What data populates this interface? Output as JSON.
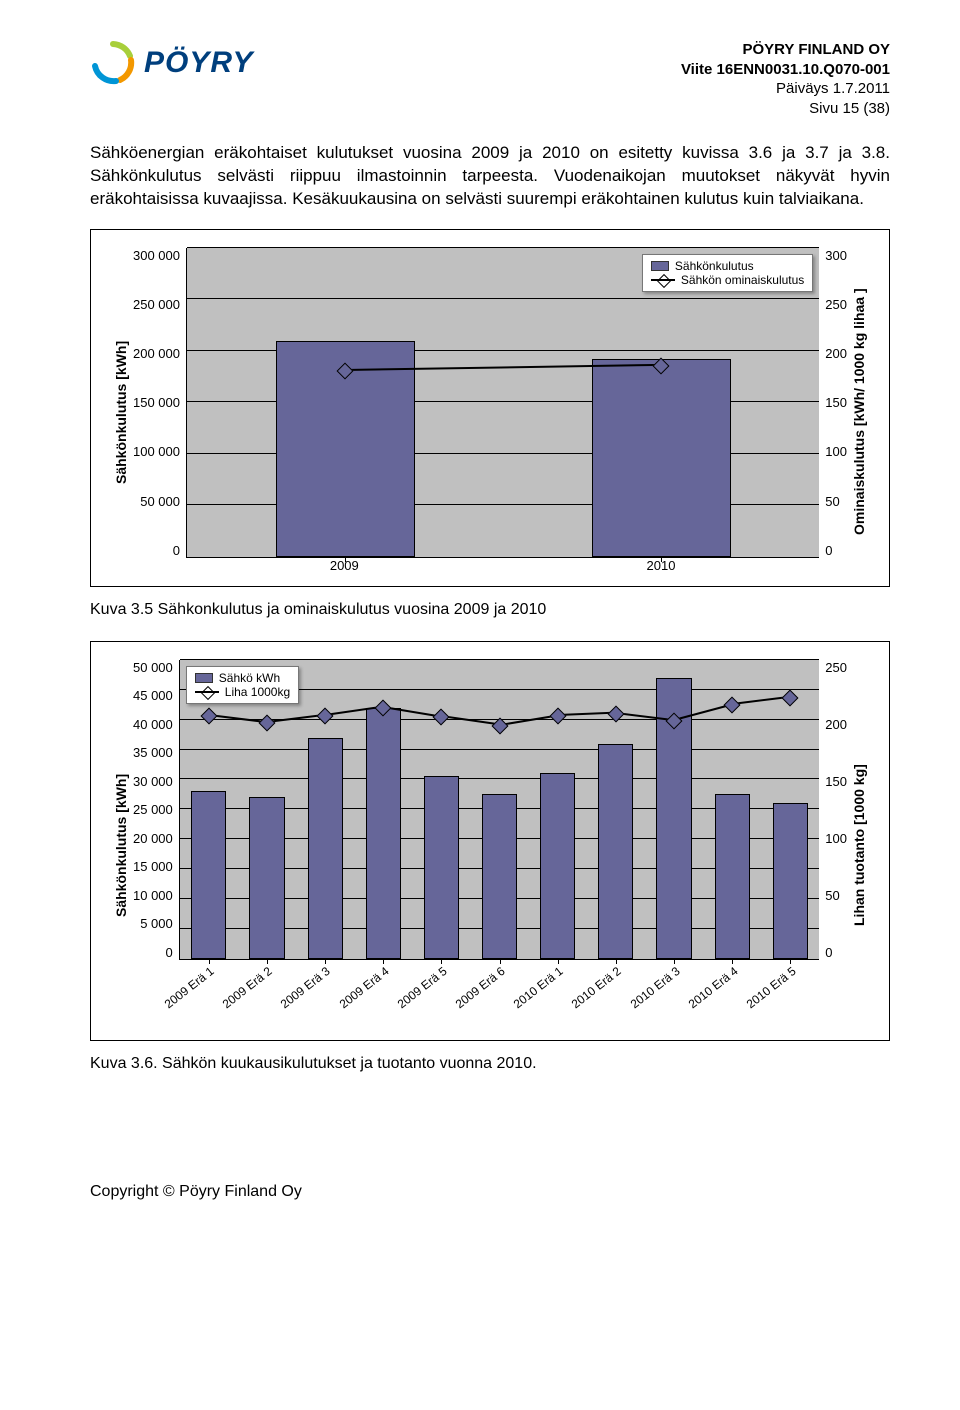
{
  "header": {
    "company": "PÖYRY FINLAND OY",
    "ref": "Viite 16ENN0031.10.Q070-001",
    "date": "Päiväys 1.7.2011",
    "page": "Sivu 15 (38)",
    "logo_text": "PÖYRY",
    "logo_colors": {
      "arc1": "#a8cf3b",
      "arc2": "#f39800",
      "arc3": "#0095d6"
    }
  },
  "para1": "Sähköenergian eräkohtaiset kulutukset vuosina 2009 ja 2010 on esitetty kuvissa 3.6 ja 3.7 ja 3.8. Sähkönkulutus selvästi riippuu ilmastoinnin tarpeesta. Vuodenaikojan muutokset näkyvät hyvin eräkohtaisissa kuvaajissa. Kesäkuukausina on selvästi suurempi eräkohtainen kulutus kuin talviaikana.",
  "chart1": {
    "type": "bar+line",
    "bar_color": "#666699",
    "marker_color": "#666699",
    "plot_bg": "#c0c0c0",
    "y_label": "Sähkönkulutus [kWh]",
    "y2_label": "Ominaiskulutus [kWh/ 1000 kg lihaa ]",
    "y_max": 300000,
    "y_ticks": [
      "300 000",
      "250 000",
      "200 000",
      "150 000",
      "100 000",
      "50 000",
      "0"
    ],
    "y2_ticks": [
      "300",
      "250",
      "200",
      "150",
      "100",
      "50",
      "0"
    ],
    "categories": [
      "2009",
      "2010"
    ],
    "bar_values": [
      210000,
      192000
    ],
    "line_values": [
      180,
      185
    ],
    "y2_max": 300,
    "legend": {
      "bar": "Sähkönkulutus",
      "line": "Sähkön ominaiskulutus"
    }
  },
  "caption1": "Kuva 3.5 Sähkonkulutus ja ominaiskulutus vuosina 2009 ja 2010",
  "chart2": {
    "type": "bar+line",
    "bar_color": "#666699",
    "marker_color": "#666699",
    "plot_bg": "#c0c0c0",
    "y_label": "Sähkönkulutus [kWh]",
    "y2_label": "Lihan tuotanto [1000 kg]",
    "y_max": 50000,
    "y_ticks": [
      "50 000",
      "45 000",
      "40 000",
      "35 000",
      "30 000",
      "25 000",
      "20 000",
      "15 000",
      "10 000",
      "5 000",
      "0"
    ],
    "y2_ticks": [
      "250",
      "200",
      "150",
      "100",
      "50",
      "0"
    ],
    "y2_max": 250,
    "categories": [
      "2009 Erä 1",
      "2009 Erä 2",
      "2009 Erä 3",
      "2009 Erä 4",
      "2009 Erä 5",
      "2009 Erä 6",
      "2010 Erä 1",
      "2010 Erä 2",
      "2010 Erä 3",
      "2010 Erä 4",
      "2010 Erä 5"
    ],
    "bar_values": [
      28000,
      27000,
      37000,
      42000,
      30500,
      27500,
      31000,
      36000,
      47000,
      27500,
      26000
    ],
    "line_values": [
      203,
      197,
      203,
      210,
      202,
      195,
      203,
      205,
      199,
      212,
      218
    ],
    "legend": {
      "bar": "Sähkö kWh",
      "line": "Liha 1000kg"
    }
  },
  "caption2": "Kuva 3.6. Sähkön kuukausikulutukset ja tuotanto vuonna 2010.",
  "footer": "Copyright © Pöyry Finland Oy"
}
